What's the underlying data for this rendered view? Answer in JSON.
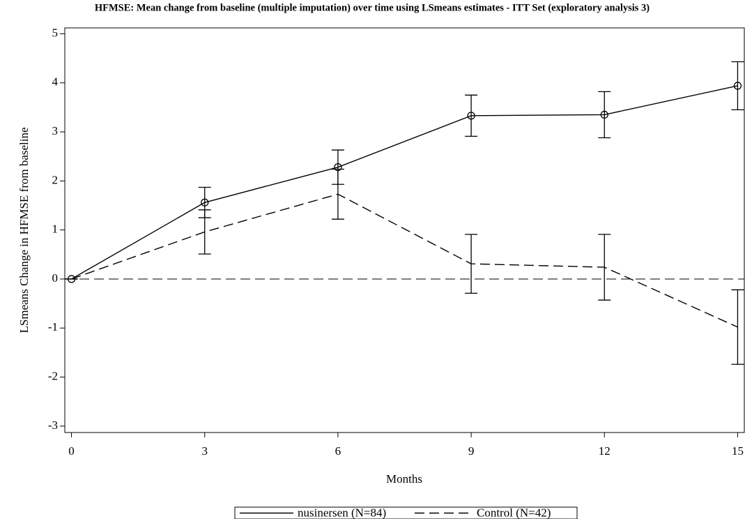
{
  "chart_data": {
    "type": "line",
    "title": "HFMSE: Mean change from baseline (multiple imputation) over time using LSmeans estimates - ITT Set (exploratory analysis 3)",
    "xlabel": "Months",
    "ylabel": "LSmeans Change in HFMSE from baseline",
    "x": [
      0,
      3,
      6,
      9,
      12,
      15
    ],
    "series": [
      {
        "name": "nusinersen (N=84)",
        "color": "#000000",
        "line_style": "solid",
        "marker": "circle",
        "values": [
          0,
          1.56,
          2.28,
          3.33,
          3.35,
          3.94
        ],
        "errors": [
          0,
          0.31,
          0.35,
          0.42,
          0.47,
          0.49
        ]
      },
      {
        "name": "Control (N=42)",
        "color": "#000000",
        "line_style": "dashed",
        "marker": "none",
        "values": [
          0,
          0.96,
          1.73,
          0.31,
          0.24,
          -0.98
        ],
        "errors": [
          0,
          0.45,
          0.51,
          0.6,
          0.67,
          0.76
        ]
      }
    ],
    "reference_line": 0,
    "xlim": [
      -0.15,
      15.15
    ],
    "ylim": [
      -3.13,
      5.12
    ],
    "xticks": [
      0,
      3,
      6,
      9,
      12,
      15
    ],
    "yticks": [
      -3,
      -2,
      -1,
      0,
      1,
      2,
      3,
      4,
      5
    ],
    "legend": "bottom"
  }
}
